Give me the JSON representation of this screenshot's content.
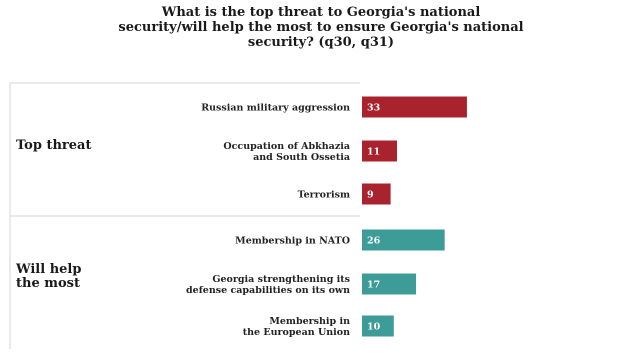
{
  "chart_data": {
    "type": "bar",
    "title": "What is the top threat to Georgia's national\nsecurity/will help the most to ensure Georgia's national\nsecurity? (q30, q31)",
    "groups": [
      {
        "name": "Top threat",
        "color": "#a8232e",
        "categories": [
          "Russian military aggression",
          "Occupation of Abkhazia\nand South Ossetia",
          "Terrorism"
        ],
        "values": [
          33,
          11,
          9
        ]
      },
      {
        "name": "Will help\nthe most",
        "color": "#3e9c98",
        "categories": [
          "Membership in NATO",
          "Georgia strengthening its\ndefense capabilities on its own",
          "Membership in\nthe European Union"
        ],
        "values": [
          26,
          17,
          10
        ]
      }
    ],
    "xlim": [
      0,
      100
    ],
    "orientation": "horizontal",
    "grid": false,
    "legend": "none"
  }
}
